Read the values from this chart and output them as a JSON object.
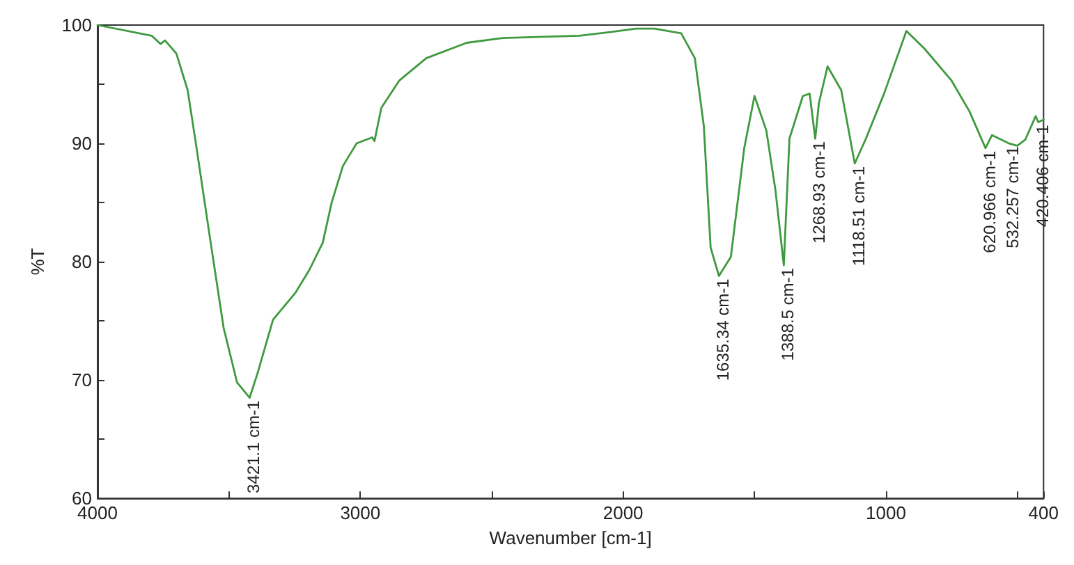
{
  "chart_data": {
    "type": "line",
    "xlabel": "Wavenumber [cm-1]",
    "ylabel": "%T",
    "xlim": [
      4000,
      400
    ],
    "ylim": [
      60,
      100
    ],
    "xticks": [
      4000,
      {
        "value": 3500,
        "label": null
      },
      3000,
      {
        "value": 2500,
        "label": null
      },
      2000,
      {
        "value": 1500,
        "label": null
      },
      1000,
      {
        "value": 500,
        "label": null
      },
      400
    ],
    "yticks": [
      60,
      {
        "value": 65,
        "label": null
      },
      70,
      {
        "value": 75,
        "label": null
      },
      80,
      {
        "value": 85,
        "label": null
      },
      90,
      {
        "value": 95,
        "label": null
      },
      100
    ],
    "grid": false,
    "marker": "none",
    "line_style": "solid",
    "series": [
      {
        "color": "#3f9a3f",
        "x": [
          4000,
          3794,
          3760,
          3743,
          3700,
          3657,
          3623,
          3572,
          3520,
          3469,
          3421.1,
          3392,
          3332,
          3246,
          3194,
          3143,
          3109,
          3066,
          3014,
          2955,
          2946,
          2920,
          2852,
          2749,
          2595,
          2458,
          2166,
          2050,
          1950,
          1881,
          1779,
          1727,
          1693,
          1667,
          1635.34,
          1590,
          1539,
          1500,
          1455,
          1420,
          1388.5,
          1367,
          1316,
          1290,
          1268.93,
          1255,
          1222,
          1170,
          1118.51,
          1076,
          1007,
          922,
          853,
          750,
          682,
          620.966,
          596,
          532.257,
          500,
          470,
          430,
          420.406,
          400
        ],
        "values": [
          100,
          99.1,
          98.4,
          98.7,
          97.6,
          94.5,
          89.6,
          82.0,
          74.4,
          69.8,
          68.5,
          70.5,
          75.1,
          77.4,
          79.3,
          81.6,
          85.0,
          88.1,
          90.0,
          90.5,
          90.2,
          93.0,
          95.3,
          97.2,
          98.5,
          98.9,
          99.1,
          99.4,
          99.7,
          99.7,
          99.3,
          97.2,
          91.5,
          81.2,
          78.8,
          80.4,
          89.6,
          94.0,
          91.1,
          86.0,
          79.7,
          90.4,
          94.0,
          94.2,
          90.4,
          93.4,
          96.5,
          94.5,
          88.3,
          90.4,
          94.2,
          99.5,
          98.0,
          95.3,
          92.7,
          89.6,
          90.7,
          90.0,
          89.8,
          90.3,
          92.3,
          91.8,
          92.0
        ]
      }
    ],
    "annotations": [
      {
        "text": "3421.1 cm-1",
        "x": 3421.1,
        "y": 68.5
      },
      {
        "text": "1635.34 cm-1",
        "x": 1635.34,
        "y": 78.8
      },
      {
        "text": "1388.5 cm-1",
        "x": 1388.5,
        "y": 79.7
      },
      {
        "text": "1268.93 cm-1",
        "x": 1268.93,
        "y": 90.4
      },
      {
        "text": "1118.51 cm-1",
        "x": 1118.51,
        "y": 88.3
      },
      {
        "text": "620.966 cm-1",
        "x": 620.966,
        "y": 89.6
      },
      {
        "text": "532.257 cm-1",
        "x": 532.257,
        "y": 90.0
      },
      {
        "text": "420.406 cm-1",
        "x": 420.406,
        "y": 91.8
      }
    ]
  }
}
